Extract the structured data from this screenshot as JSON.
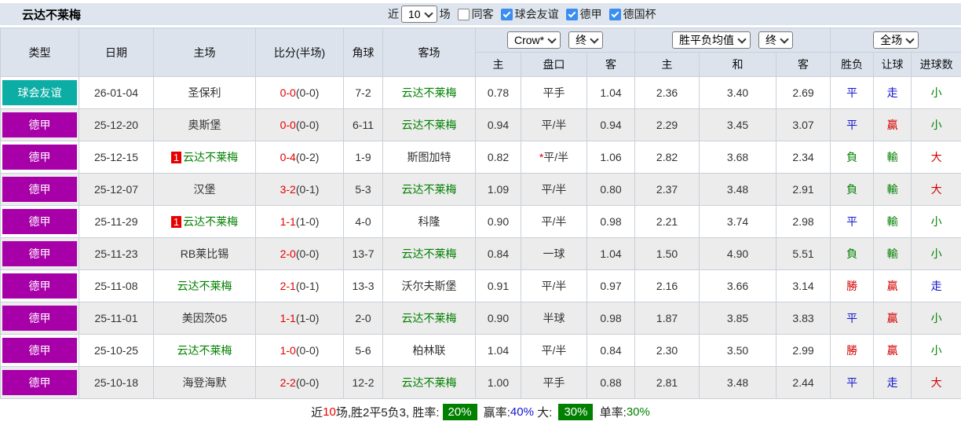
{
  "title": "云达不莱梅",
  "colors": {
    "friendly_badge": "#0bada4",
    "league_badge": "#a800a8",
    "score_red": "#e60000",
    "self_green": "#008000",
    "result_red": "#d40000",
    "result_green": "#008000",
    "result_blue": "#1414cc",
    "asia_col_bg": "#f9f3ea",
    "euro_col_bg": "#eef5fa",
    "header_bg": "#dce3ed"
  },
  "toolbar": {
    "near_label": "近",
    "matches_value": "10",
    "matches_suffix": "场",
    "filters": [
      {
        "label": "同客",
        "checked": false
      },
      {
        "label": "球会友谊",
        "checked": true
      },
      {
        "label": "德甲",
        "checked": true
      },
      {
        "label": "德国杯",
        "checked": true
      }
    ]
  },
  "table": {
    "columns": {
      "type": "类型",
      "date": "日期",
      "home": "主场",
      "score": "比分(半场)",
      "corner": "角球",
      "away": "客场",
      "asia_home": "主",
      "asia_handicap": "盘口",
      "asia_away": "客",
      "euro_home": "主",
      "euro_draw": "和",
      "euro_away": "客",
      "res_wdl": "胜负",
      "res_handicap": "让球",
      "res_goals": "进球数"
    },
    "dropdowns": {
      "company": "Crow*",
      "company_state": "终",
      "avg": "胜平负均值",
      "avg_state": "终",
      "scope": "全场"
    },
    "rows": [
      {
        "league": "球会友谊",
        "league_color": "#0bada4",
        "date": "26-01-04",
        "home": "圣保利",
        "home_self": false,
        "home_badge": "",
        "score": "0-0",
        "half": "(0-0)",
        "corner": "7-2",
        "away": "云达不莱梅",
        "away_self": true,
        "asia": [
          "0.78",
          "平手",
          "1.04"
        ],
        "handicap_star": false,
        "euro": [
          "2.36",
          "3.40",
          "2.69"
        ],
        "results": [
          [
            "平",
            "blue"
          ],
          [
            "走",
            "blue"
          ],
          [
            "小",
            "green"
          ]
        ]
      },
      {
        "league": "德甲",
        "league_color": "#a800a8",
        "date": "25-12-20",
        "home": "奥斯堡",
        "home_self": false,
        "home_badge": "",
        "score": "0-0",
        "half": "(0-0)",
        "corner": "6-11",
        "away": "云达不莱梅",
        "away_self": true,
        "asia": [
          "0.94",
          "平/半",
          "0.94"
        ],
        "handicap_star": false,
        "euro": [
          "2.29",
          "3.45",
          "3.07"
        ],
        "results": [
          [
            "平",
            "blue"
          ],
          [
            "贏",
            "red"
          ],
          [
            "小",
            "green"
          ]
        ]
      },
      {
        "league": "德甲",
        "league_color": "#a800a8",
        "date": "25-12-15",
        "home": "云达不莱梅",
        "home_self": true,
        "home_badge": "1",
        "score": "0-4",
        "half": "(0-2)",
        "corner": "1-9",
        "away": "斯图加特",
        "away_self": false,
        "asia": [
          "0.82",
          "平/半",
          "1.06"
        ],
        "handicap_star": true,
        "euro": [
          "2.82",
          "3.68",
          "2.34"
        ],
        "results": [
          [
            "負",
            "green"
          ],
          [
            "輸",
            "green"
          ],
          [
            "大",
            "red"
          ]
        ]
      },
      {
        "league": "德甲",
        "league_color": "#a800a8",
        "date": "25-12-07",
        "home": "汉堡",
        "home_self": false,
        "home_badge": "",
        "score": "3-2",
        "half": "(0-1)",
        "corner": "5-3",
        "away": "云达不莱梅",
        "away_self": true,
        "asia": [
          "1.09",
          "平/半",
          "0.80"
        ],
        "handicap_star": false,
        "euro": [
          "2.37",
          "3.48",
          "2.91"
        ],
        "results": [
          [
            "負",
            "green"
          ],
          [
            "輸",
            "green"
          ],
          [
            "大",
            "red"
          ]
        ]
      },
      {
        "league": "德甲",
        "league_color": "#a800a8",
        "date": "25-11-29",
        "home": "云达不莱梅",
        "home_self": true,
        "home_badge": "1",
        "score": "1-1",
        "half": "(1-0)",
        "corner": "4-0",
        "away": "科隆",
        "away_self": false,
        "asia": [
          "0.90",
          "平/半",
          "0.98"
        ],
        "handicap_star": false,
        "euro": [
          "2.21",
          "3.74",
          "2.98"
        ],
        "results": [
          [
            "平",
            "blue"
          ],
          [
            "輸",
            "green"
          ],
          [
            "小",
            "green"
          ]
        ]
      },
      {
        "league": "德甲",
        "league_color": "#a800a8",
        "date": "25-11-23",
        "home": "RB莱比锡",
        "home_self": false,
        "home_badge": "",
        "score": "2-0",
        "half": "(0-0)",
        "corner": "13-7",
        "away": "云达不莱梅",
        "away_self": true,
        "asia": [
          "0.84",
          "一球",
          "1.04"
        ],
        "handicap_star": false,
        "euro": [
          "1.50",
          "4.90",
          "5.51"
        ],
        "results": [
          [
            "負",
            "green"
          ],
          [
            "輸",
            "green"
          ],
          [
            "小",
            "green"
          ]
        ]
      },
      {
        "league": "德甲",
        "league_color": "#a800a8",
        "date": "25-11-08",
        "home": "云达不莱梅",
        "home_self": true,
        "home_badge": "",
        "score": "2-1",
        "half": "(0-1)",
        "corner": "13-3",
        "away": "沃尔夫斯堡",
        "away_self": false,
        "asia": [
          "0.91",
          "平/半",
          "0.97"
        ],
        "handicap_star": false,
        "euro": [
          "2.16",
          "3.66",
          "3.14"
        ],
        "results": [
          [
            "勝",
            "red"
          ],
          [
            "贏",
            "red"
          ],
          [
            "走",
            "blue"
          ]
        ]
      },
      {
        "league": "德甲",
        "league_color": "#a800a8",
        "date": "25-11-01",
        "home": "美因茨05",
        "home_self": false,
        "home_badge": "",
        "score": "1-1",
        "half": "(1-0)",
        "corner": "2-0",
        "away": "云达不莱梅",
        "away_self": true,
        "asia": [
          "0.90",
          "半球",
          "0.98"
        ],
        "handicap_star": false,
        "euro": [
          "1.87",
          "3.85",
          "3.83"
        ],
        "results": [
          [
            "平",
            "blue"
          ],
          [
            "贏",
            "red"
          ],
          [
            "小",
            "green"
          ]
        ]
      },
      {
        "league": "德甲",
        "league_color": "#a800a8",
        "date": "25-10-25",
        "home": "云达不莱梅",
        "home_self": true,
        "home_badge": "",
        "score": "1-0",
        "half": "(0-0)",
        "corner": "5-6",
        "away": "柏林联",
        "away_self": false,
        "asia": [
          "1.04",
          "平/半",
          "0.84"
        ],
        "handicap_star": false,
        "euro": [
          "2.30",
          "3.50",
          "2.99"
        ],
        "results": [
          [
            "勝",
            "red"
          ],
          [
            "贏",
            "red"
          ],
          [
            "小",
            "green"
          ]
        ]
      },
      {
        "league": "德甲",
        "league_color": "#a800a8",
        "date": "25-10-18",
        "home": "海登海默",
        "home_self": false,
        "home_badge": "",
        "score": "2-2",
        "half": "(0-0)",
        "corner": "12-2",
        "away": "云达不莱梅",
        "away_self": true,
        "asia": [
          "1.00",
          "平手",
          "0.88"
        ],
        "handicap_star": false,
        "euro": [
          "2.81",
          "3.48",
          "2.44"
        ],
        "results": [
          [
            "平",
            "blue"
          ],
          [
            "走",
            "blue"
          ],
          [
            "大",
            "red"
          ]
        ]
      }
    ]
  },
  "footer": {
    "segments": [
      {
        "text": "近",
        "style": "plain"
      },
      {
        "text": "10",
        "style": "red"
      },
      {
        "text": "场,胜2平5负3, 胜率:",
        "style": "plain"
      },
      {
        "text": "20%",
        "style": "greenbox"
      },
      {
        "text": " 赢率:",
        "style": "plain"
      },
      {
        "text": "40%",
        "style": "blue"
      },
      {
        "text": " 大: ",
        "style": "plain"
      },
      {
        "text": "30%",
        "style": "greenbox"
      },
      {
        "text": " 单率:",
        "style": "plain"
      },
      {
        "text": "30%",
        "style": "green"
      }
    ]
  }
}
